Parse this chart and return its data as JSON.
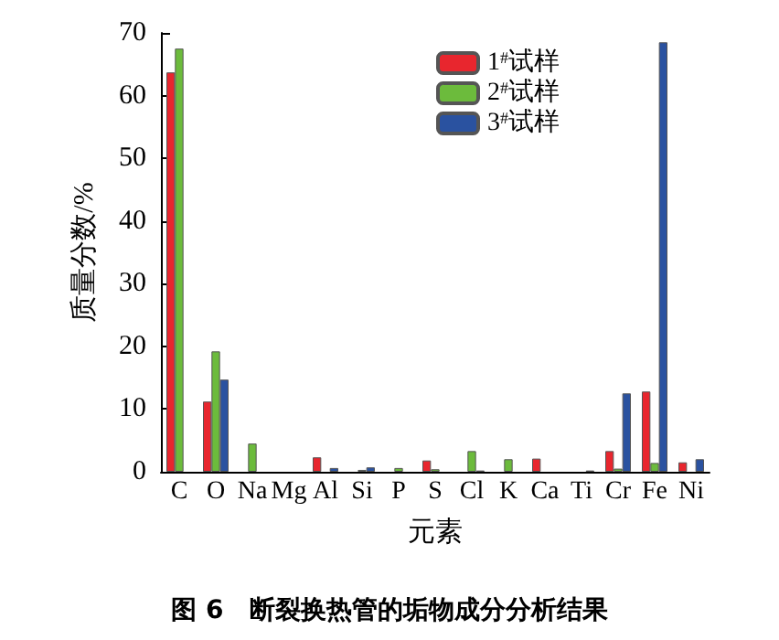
{
  "chart_data": {
    "type": "bar",
    "title": "图 6　断裂换热管的垢物成分分析结果",
    "xlabel": "元素",
    "ylabel": "质量分数/%",
    "categories": [
      "C",
      "O",
      "Na",
      "Mg",
      "Al",
      "Si",
      "P",
      "S",
      "Cl",
      "K",
      "Ca",
      "Ti",
      "Cr",
      "Fe",
      "Ni"
    ],
    "series": [
      {
        "name": "1$^{#}$试样",
        "color": "#e8262e",
        "values": [
          63.7,
          11.2,
          null,
          null,
          2.3,
          null,
          null,
          1.8,
          null,
          null,
          2.1,
          null,
          3.3,
          12.8,
          1.5
        ]
      },
      {
        "name": "2$^{#}$试样",
        "color": "#6cbb3c",
        "values": [
          67.5,
          19.2,
          4.5,
          null,
          null,
          0.3,
          0.6,
          0.4,
          3.3,
          2.0,
          null,
          null,
          0.5,
          1.4,
          null
        ]
      },
      {
        "name": "3$^{#}$试样",
        "color": "#2a52a0",
        "values": [
          null,
          14.7,
          null,
          null,
          0.6,
          0.7,
          null,
          null,
          0.2,
          null,
          null,
          0.2,
          12.5,
          68.5,
          2.0
        ]
      }
    ],
    "ylim": [
      0,
      70
    ],
    "yticks": [
      0,
      10,
      20,
      30,
      40,
      50,
      60,
      70
    ],
    "grid": false,
    "legend": "top right"
  }
}
